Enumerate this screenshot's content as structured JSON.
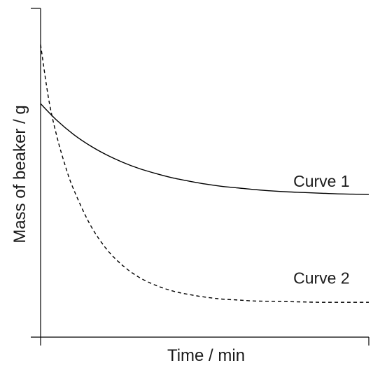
{
  "chart_data": {
    "type": "line",
    "title": "",
    "xlabel": "Time / min",
    "ylabel": "Mass of beaker / g",
    "xlim": [
      0,
      100
    ],
    "ylim": [
      0,
      100
    ],
    "grid": false,
    "legend": "none",
    "axis_ticks_labeled": false,
    "series": [
      {
        "name": "Curve 1",
        "style": "solid",
        "color": "#000000",
        "x": [
          0,
          5,
          10,
          15,
          20,
          25,
          30,
          35,
          40,
          45,
          50,
          55,
          60,
          65,
          70,
          75,
          80,
          85,
          90,
          95,
          100
        ],
        "y": [
          71.0,
          65.9,
          61.7,
          58.3,
          55.5,
          53.2,
          51.3,
          49.8,
          48.5,
          47.5,
          46.6,
          45.9,
          45.4,
          44.9,
          44.5,
          44.2,
          44.0,
          43.8,
          43.6,
          43.5,
          43.4
        ]
      },
      {
        "name": "Curve 2",
        "style": "dashed",
        "color": "#000000",
        "x": [
          0,
          2.5,
          5,
          7.5,
          10,
          15,
          20,
          25,
          30,
          35,
          40,
          45,
          50,
          55,
          60,
          65,
          70,
          75,
          80,
          85,
          90,
          95,
          100
        ],
        "y": [
          89.0,
          72.2,
          60.9,
          52.2,
          45.1,
          34.4,
          26.9,
          21.8,
          18.2,
          15.8,
          14.1,
          13.0,
          12.2,
          11.6,
          11.3,
          11.0,
          10.9,
          10.8,
          10.7,
          10.6,
          10.6,
          10.6,
          10.6
        ]
      }
    ],
    "annotations": [
      {
        "text": "Curve 1",
        "x": 77,
        "y": 47.5,
        "target_series": "Curve 1"
      },
      {
        "text": "Curve 2",
        "x": 77,
        "y": 18.0,
        "target_series": "Curve 2"
      }
    ]
  }
}
